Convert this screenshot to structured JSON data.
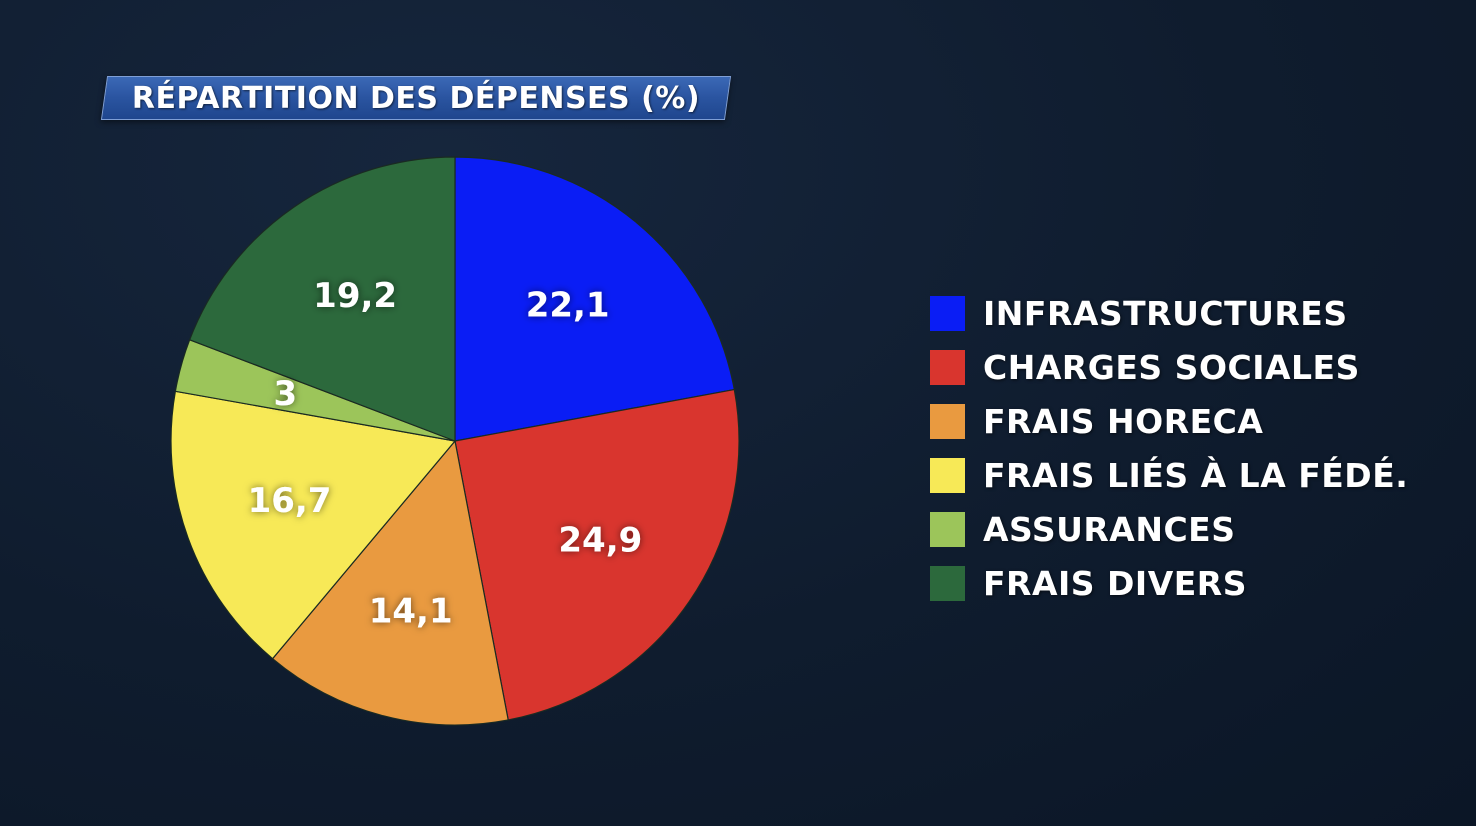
{
  "title": "RÉPARTITION DES DÉPENSES (%)",
  "chart_data": {
    "type": "pie",
    "title": "RÉPARTITION DES DÉPENSES (%)",
    "start_angle_deg": 0,
    "direction": "clockwise",
    "legend_position": "right",
    "slices": [
      {
        "label": "INFRASTRUCTURES",
        "value": 22.1,
        "value_label": "22,1",
        "color": "#0a1df5"
      },
      {
        "label": "CHARGES SOCIALES",
        "value": 24.9,
        "value_label": "24,9",
        "color": "#d9352e"
      },
      {
        "label": "FRAIS HORECA",
        "value": 14.1,
        "value_label": "14,1",
        "color": "#e99a40"
      },
      {
        "label": "FRAIS LIÉS À LA FÉDÉ.",
        "value": 16.7,
        "value_label": "16,7",
        "color": "#f7e957"
      },
      {
        "label": "ASSURANCES",
        "value": 3,
        "value_label": "3",
        "color": "#9cc55a"
      },
      {
        "label": "FRAIS DIVERS",
        "value": 19.2,
        "value_label": "19,2",
        "color": "#2c693c"
      }
    ]
  }
}
